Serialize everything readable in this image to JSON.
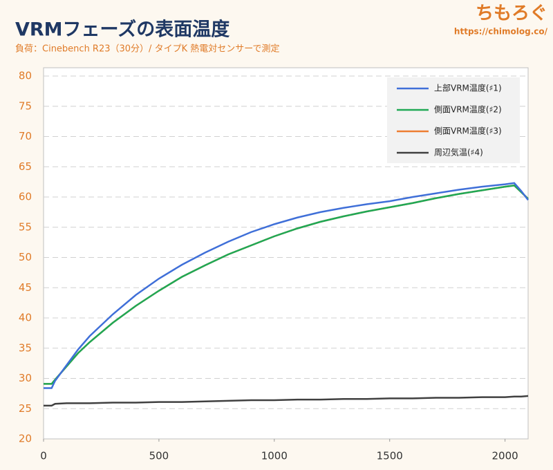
{
  "brand": {
    "name": "ちもろぐ",
    "url": "https://chimolog.co/"
  },
  "chart_data": {
    "type": "line",
    "title": "VRMフェーズの表面温度",
    "subtitle": "負荷：Cinebench R23（30分）/ タイプK 熱電対センサーで測定",
    "x": [
      0,
      35,
      50,
      100,
      150,
      200,
      300,
      400,
      500,
      600,
      700,
      800,
      900,
      1000,
      1100,
      1200,
      1300,
      1400,
      1500,
      1600,
      1700,
      1800,
      1900,
      2000,
      2040,
      2070,
      2100
    ],
    "series": [
      {
        "name": "側面VRM温度(♯3)",
        "color": "#ed7d31",
        "values": [
          29.1,
          29.1,
          29.8,
          32,
          34.2,
          36,
          39.2,
          42,
          44.5,
          46.8,
          48.7,
          50.5,
          52,
          53.5,
          54.8,
          55.9,
          56.8,
          57.6,
          58.3,
          59,
          59.8,
          60.5,
          61.1,
          61.7,
          61.9,
          60.8,
          59.7
        ]
      },
      {
        "name": "側面VRM温度(♯2)",
        "color": "#1fa855",
        "values": [
          29.1,
          29.1,
          29.8,
          32,
          34.2,
          36,
          39.2,
          42,
          44.5,
          46.8,
          48.7,
          50.5,
          52,
          53.5,
          54.8,
          55.9,
          56.8,
          57.6,
          58.3,
          59,
          59.8,
          60.5,
          61.1,
          61.7,
          61.9,
          60.8,
          59.7
        ]
      },
      {
        "name": "上部VRM温度(♯1)",
        "color": "#3f6fd8",
        "values": [
          28.4,
          28.4,
          29.6,
          32.2,
          34.8,
          37,
          40.6,
          43.8,
          46.5,
          48.8,
          50.8,
          52.6,
          54.2,
          55.5,
          56.6,
          57.5,
          58.2,
          58.8,
          59.3,
          60,
          60.6,
          61.2,
          61.7,
          62.1,
          62.3,
          61,
          59.5
        ]
      },
      {
        "name": "周辺気温(♯4)",
        "color": "#404040",
        "values": [
          25.5,
          25.5,
          25.8,
          25.9,
          25.9,
          25.9,
          26,
          26,
          26.1,
          26.1,
          26.2,
          26.3,
          26.4,
          26.4,
          26.5,
          26.5,
          26.6,
          26.6,
          26.7,
          26.7,
          26.8,
          26.8,
          26.9,
          26.9,
          27,
          27,
          27.1
        ]
      }
    ],
    "legend_order": [
      2,
      1,
      0,
      3
    ],
    "xlim": [
      0,
      2100
    ],
    "xticks": [
      0,
      500,
      1000,
      1500,
      2000
    ],
    "ylim": [
      20,
      80
    ],
    "yticks": [
      20,
      25,
      30,
      35,
      40,
      45,
      50,
      55,
      60,
      65,
      70,
      75,
      80
    ],
    "grid": true,
    "legend": "top-right"
  }
}
